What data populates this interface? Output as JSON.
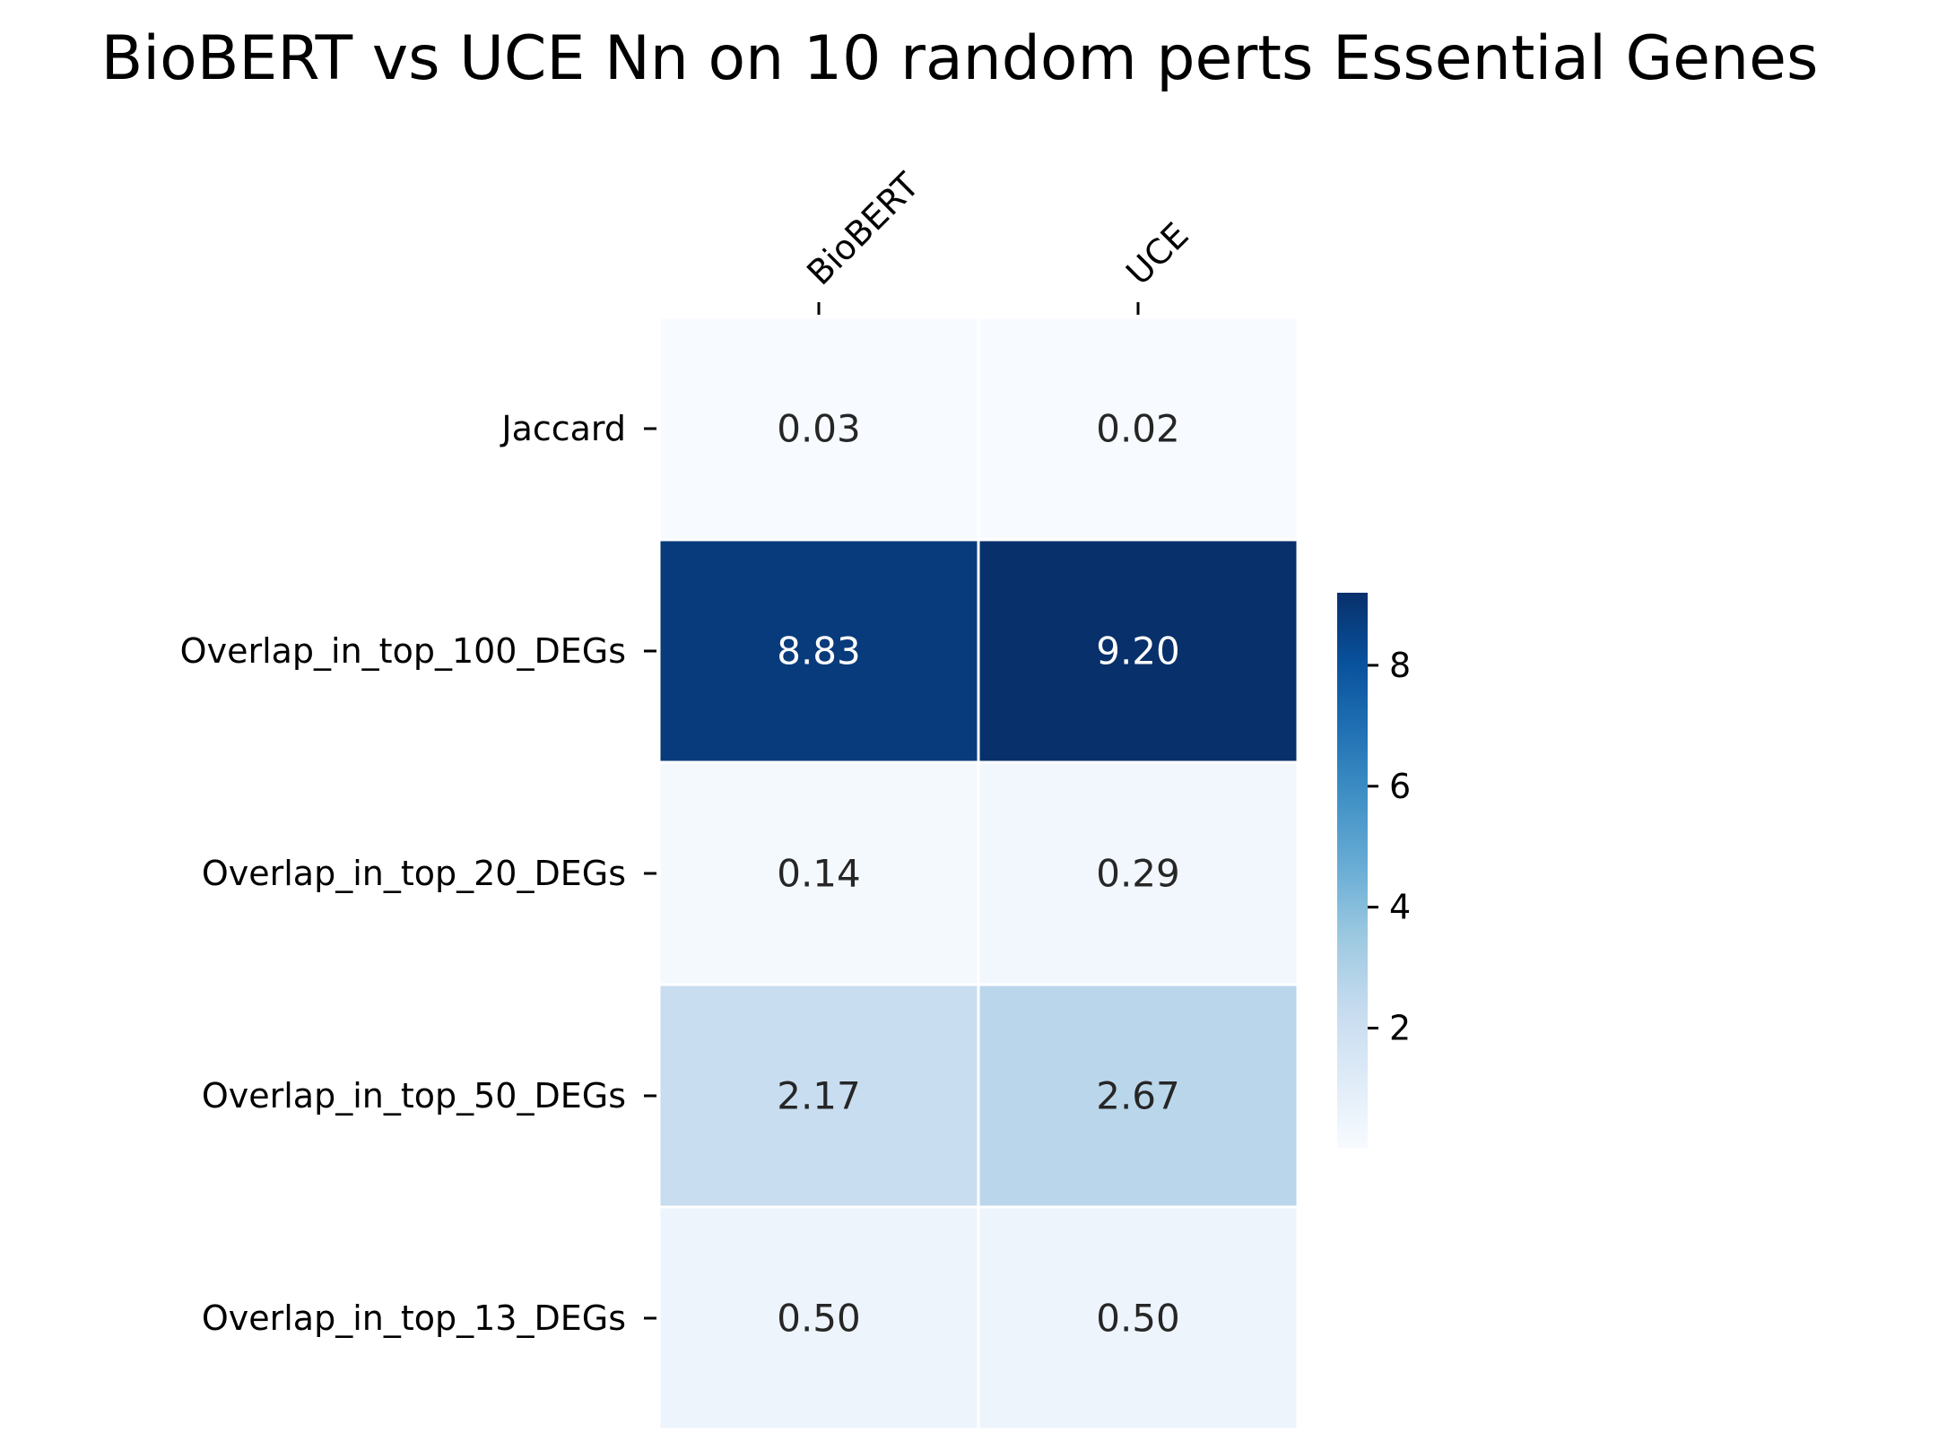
{
  "chart_data": {
    "type": "heatmap",
    "title": "BioBERT vs UCE Nn on 10 random perts Essential Genes",
    "columns": [
      "BioBERT",
      "UCE"
    ],
    "rows": [
      "Jaccard",
      "Overlap_in_top_100_DEGs",
      "Overlap_in_top_20_DEGs",
      "Overlap_in_top_50_DEGs",
      "Overlap_in_top_13_DEGs"
    ],
    "values": [
      [
        0.03,
        0.02
      ],
      [
        8.83,
        9.2
      ],
      [
        0.14,
        0.29
      ],
      [
        2.17,
        2.67
      ],
      [
        0.5,
        0.5
      ]
    ],
    "cell_labels": [
      [
        "0.03",
        "0.02"
      ],
      [
        "8.83",
        "9.20"
      ],
      [
        "0.14",
        "0.29"
      ],
      [
        "2.17",
        "2.67"
      ],
      [
        "0.50",
        "0.50"
      ]
    ],
    "colormap": "Blues",
    "colorbar": {
      "range": [
        0.02,
        9.2
      ],
      "ticks": [
        2,
        4,
        6,
        8
      ],
      "tick_labels": [
        "2",
        "4",
        "6",
        "8"
      ]
    },
    "xaxis_position": "top",
    "xtick_rotation": "45 degrees",
    "colors": {
      "min": "#f7fbff",
      "max": "#08306b",
      "text_dark": "#262626",
      "text_light": "#ffffff"
    }
  }
}
